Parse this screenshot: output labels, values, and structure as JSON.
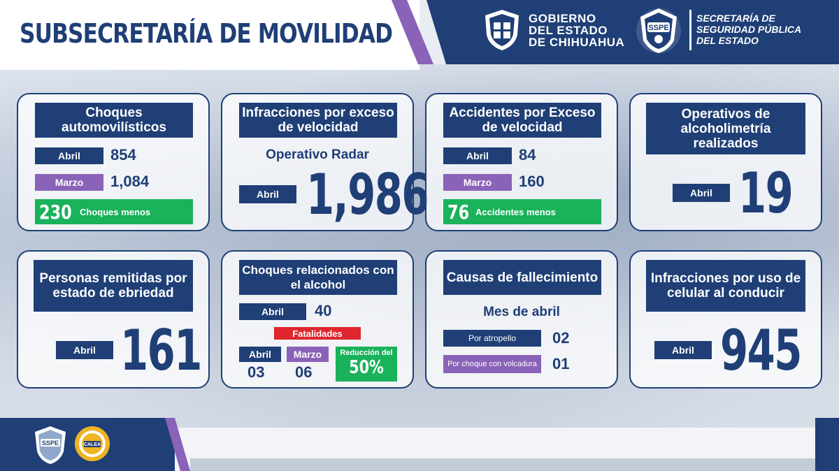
{
  "header": {
    "title": "SUBSECRETARÍA DE MOVILIDAD",
    "gov_lines": [
      "GOBIERNO",
      "DEL ESTADO",
      "DE CHIHUAHUA"
    ],
    "sspe_lines": [
      "SECRETARÍA DE",
      "SEGURIDAD PÚBLICA",
      "DEL ESTADO"
    ]
  },
  "cards": {
    "choques": {
      "title": "Choques automovilísticos",
      "abril_label": "Abril",
      "abril_value": "854",
      "marzo_label": "Marzo",
      "marzo_value": "1,084",
      "diff_value": "230",
      "diff_label": "Choques menos"
    },
    "radar": {
      "title": "Infracciones por exceso de velocidad",
      "subtitle": "Operativo Radar",
      "abril_label": "Abril",
      "abril_value": "1,986"
    },
    "accidentes": {
      "title": "Accidentes por Exceso de velocidad",
      "abril_label": "Abril",
      "abril_value": "84",
      "marzo_label": "Marzo",
      "marzo_value": "160",
      "diff_value": "76",
      "diff_label": "Accidentes menos"
    },
    "alcoholimetria": {
      "title": "Operativos de alcoholimetría realizados",
      "abril_label": "Abril",
      "abril_value": "19"
    },
    "remitidas": {
      "title": "Personas remitidas por estado de ebriedad",
      "abril_label": "Abril",
      "abril_value": "161"
    },
    "alcohol": {
      "title": "Choques relacionados con el alcohol",
      "abril_label": "Abril",
      "abril_value": "40",
      "fatalidades_label": "Fatalidades",
      "fat_abril_label": "Abril",
      "fat_abril_value": "03",
      "fat_marzo_label": "Marzo",
      "fat_marzo_value": "06",
      "reduccion_label": "Reducción del",
      "reduccion_value": "50%"
    },
    "fallecimiento": {
      "title": "Causas de fallecimiento",
      "subtitle": "Mes de abril",
      "cause1_label": "Por atropello",
      "cause1_value": "02",
      "cause2_label": "Por choque con volcadura",
      "cause2_value": "01"
    },
    "celular": {
      "title": "Infracciones por uso de celular al conducir",
      "abril_label": "Abril",
      "abril_value": "945"
    }
  },
  "colors": {
    "navy": "#1f3f76",
    "purple": "#8a62b8",
    "green": "#1ab25a",
    "red": "#e0262e"
  }
}
